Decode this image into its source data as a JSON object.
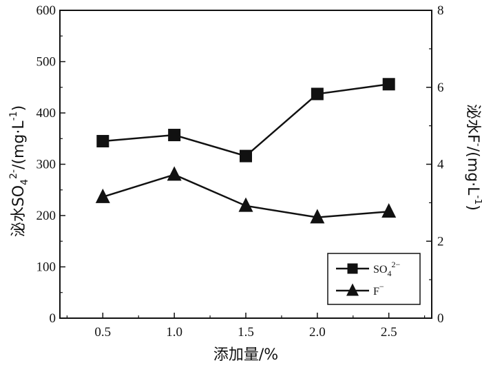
{
  "chart_data": {
    "type": "line",
    "title": "",
    "x": [
      0.5,
      1.0,
      1.5,
      2.0,
      2.5
    ],
    "x_tick_labels": [
      "0.5",
      "1.0",
      "1.5",
      "2.0",
      "2.5"
    ],
    "xlim": [
      0.2,
      2.8
    ],
    "xlabel": "添加量/%",
    "ylabel_left": {
      "main": "泌水SO",
      "sub": "4",
      "sup": "2-",
      "unit": "/(mg·L",
      "unit_sup": "-1",
      "close": ")"
    },
    "ylabel_right": {
      "main": "泌水F",
      "sup": "-",
      "unit": "/(mg·L",
      "unit_sup": "-1",
      "close": ")"
    },
    "ylim_left": [
      0,
      600
    ],
    "yticks_left": [
      "0",
      "100",
      "200",
      "300",
      "400",
      "500",
      "600"
    ],
    "ylim_right": [
      0,
      8
    ],
    "yticks_right": [
      "0",
      "2",
      "4",
      "6",
      "8"
    ],
    "grid": false,
    "legend_position": "bottom-right",
    "series": [
      {
        "name": "SO",
        "name_sub": "4",
        "name_sup": "2−",
        "axis": "left",
        "marker": "square",
        "values": [
          345,
          357,
          316,
          437,
          456
        ]
      },
      {
        "name": "F",
        "name_sup": "−",
        "axis": "right",
        "marker": "triangle",
        "values": [
          3.15,
          3.73,
          2.92,
          2.62,
          2.77
        ]
      }
    ],
    "colors": {
      "line": "#111111",
      "frame": "#111111"
    }
  }
}
